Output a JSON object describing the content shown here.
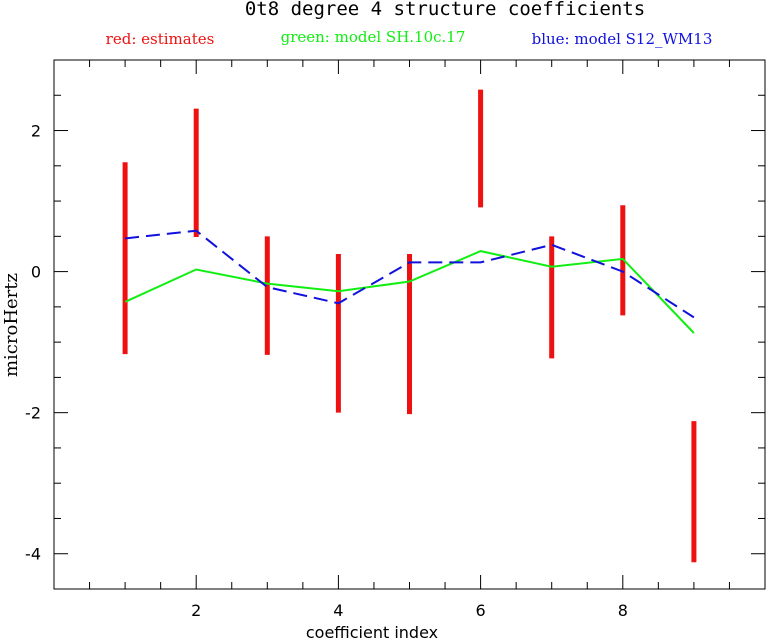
{
  "chart_data": {
    "type": "line",
    "title": "0t8 degree 4 structure coefficients",
    "xlabel": "coefficient index",
    "ylabel": "microHertz",
    "xlim": [
      0,
      10
    ],
    "ylim": [
      -4.5,
      3.0
    ],
    "x_ticks": [
      2,
      4,
      6,
      8
    ],
    "y_ticks": [
      2,
      0,
      -2,
      -4
    ],
    "x_tick_labels": [
      "2",
      "4",
      "6",
      "8"
    ],
    "y_tick_labels": [
      "2",
      "0",
      "-2",
      "-4"
    ],
    "legend": [
      {
        "label": "red: estimates",
        "color": "#ee1111"
      },
      {
        "label": "green: model SH.10c.17",
        "color": "#11ee11"
      },
      {
        "label": "blue: model S12_WM13",
        "color": "#1111dd"
      }
    ],
    "error_bars": {
      "color": "#ee1111",
      "x": [
        1,
        2,
        3,
        4,
        5,
        6,
        7,
        8,
        9
      ],
      "low": [
        -1.17,
        0.49,
        -1.18,
        -2.0,
        -2.02,
        0.91,
        -1.23,
        -0.62,
        -4.12
      ],
      "high": [
        1.55,
        2.31,
        0.5,
        0.25,
        0.25,
        2.58,
        0.5,
        0.94,
        -2.12
      ]
    },
    "series": [
      {
        "style": "solid",
        "color": "#11ee11",
        "x": [
          1,
          2,
          3,
          4,
          5,
          6,
          7,
          8,
          9
        ],
        "y": [
          -0.43,
          0.03,
          -0.17,
          -0.28,
          -0.14,
          0.29,
          0.07,
          0.18,
          -0.87
        ]
      },
      {
        "style": "dashed",
        "color": "#1111dd",
        "x": [
          1,
          2,
          3,
          4,
          5,
          6,
          7,
          8,
          9
        ],
        "y": [
          0.47,
          0.58,
          -0.22,
          -0.45,
          0.13,
          0.13,
          0.38,
          0.0,
          -0.65
        ]
      }
    ]
  }
}
